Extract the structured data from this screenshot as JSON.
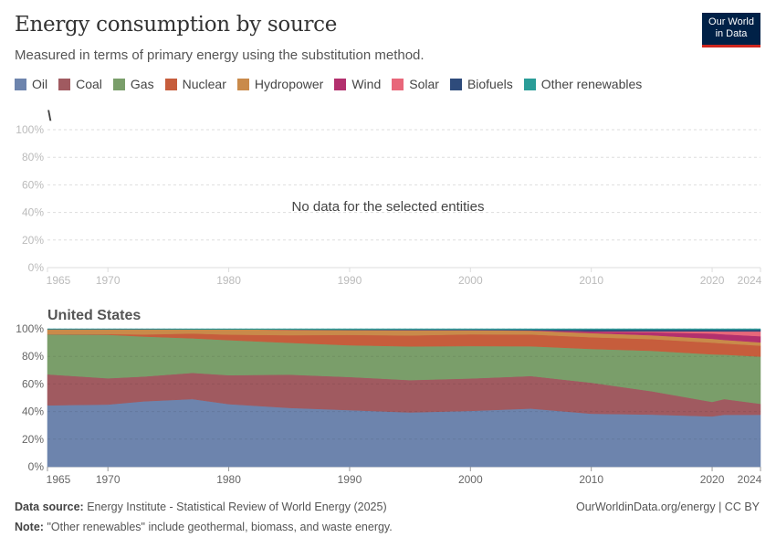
{
  "header": {
    "title": "Energy consumption by source",
    "subtitle": "Measured in terms of primary energy using the substitution method.",
    "logo": "Our World in Data"
  },
  "footer": {
    "source_label": "Data source:",
    "source": "Energy Institute - Statistical Review of World Energy (2025)",
    "url": "OurWorldinData.org/energy | CC BY",
    "note_label": "Note:",
    "note": "\"Other renewables\" include geothermal, biomass, and waste energy."
  },
  "chart_data": [
    {
      "type": "area",
      "stacked": "percent",
      "title": "\\",
      "message": "No data for the selected entities",
      "yticks": [
        "0%",
        "20%",
        "40%",
        "60%",
        "80%",
        "100%"
      ],
      "xticks": [
        "1965",
        "1970",
        "1980",
        "1990",
        "2000",
        "2010",
        "2020",
        "2024"
      ],
      "xlim": [
        1965,
        2024
      ],
      "ylim": [
        0,
        100
      ],
      "grid": true
    },
    {
      "type": "area",
      "stacked": "percent",
      "title": "United States",
      "xlim": [
        1965,
        2024
      ],
      "ylim": [
        0,
        100
      ],
      "grid": true,
      "yticks": [
        "0%",
        "20%",
        "40%",
        "60%",
        "80%",
        "100%"
      ],
      "xticks": [
        "1965",
        "1970",
        "1980",
        "1990",
        "2000",
        "2010",
        "2020",
        "2024"
      ],
      "x": [
        1965,
        1970,
        1973,
        1977,
        1980,
        1985,
        1990,
        1995,
        2000,
        2005,
        2010,
        2015,
        2020,
        2021,
        2024
      ],
      "series": [
        {
          "name": "Oil",
          "color": "#6d84ad",
          "values": [
            44.5,
            45,
            47.5,
            49,
            45.5,
            42.5,
            41,
            39.5,
            40.5,
            42,
            38.5,
            38,
            36.5,
            38,
            38
          ]
        },
        {
          "name": "Coal",
          "color": "#a05a60",
          "values": [
            22.5,
            19,
            18,
            19,
            21,
            24,
            24,
            23.5,
            23.5,
            23.5,
            22.5,
            17,
            10.5,
            11.5,
            8
          ]
        },
        {
          "name": "Gas",
          "color": "#7a9e6a",
          "values": [
            29,
            31.5,
            29,
            25,
            25.5,
            23,
            23,
            24.5,
            23.5,
            21.5,
            24.5,
            29.5,
            34.5,
            32.5,
            34.5
          ]
        },
        {
          "name": "Nuclear",
          "color": "#c65d3c",
          "values": [
            0.2,
            0.5,
            1.5,
            3.5,
            4,
            5.5,
            7.5,
            8,
            8.5,
            8.5,
            8.5,
            8.5,
            8.5,
            8.2,
            8
          ]
        },
        {
          "name": "Hydropower",
          "color": "#c98a4a",
          "values": [
            3.5,
            3.5,
            3.8,
            3,
            3.8,
            4,
            3.5,
            3.8,
            3,
            2.8,
            3,
            2.8,
            2.8,
            2.6,
            2.4
          ]
        },
        {
          "name": "Wind",
          "color": "#b3306e",
          "values": [
            0,
            0,
            0,
            0,
            0,
            0,
            0.1,
            0.1,
            0.1,
            0.2,
            1.2,
            2.2,
            3.8,
            4.1,
            4.5
          ]
        },
        {
          "name": "Solar",
          "color": "#e8677a",
          "values": [
            0,
            0,
            0,
            0,
            0,
            0,
            0,
            0,
            0,
            0,
            0.1,
            0.6,
            1.6,
            2.1,
            3.5
          ]
        },
        {
          "name": "Biofuels",
          "color": "#2e4b7b",
          "values": [
            0,
            0,
            0,
            0,
            0,
            0.1,
            0.2,
            0.3,
            0.3,
            0.5,
            1.2,
            1.3,
            1.2,
            1.3,
            1.3
          ]
        },
        {
          "name": "Other renewables",
          "color": "#2a9d98",
          "values": [
            0.3,
            0.3,
            0.3,
            0.4,
            0.4,
            0.5,
            0.6,
            0.6,
            0.6,
            0.6,
            0.6,
            0.6,
            0.6,
            0.6,
            0.6
          ]
        }
      ]
    }
  ]
}
